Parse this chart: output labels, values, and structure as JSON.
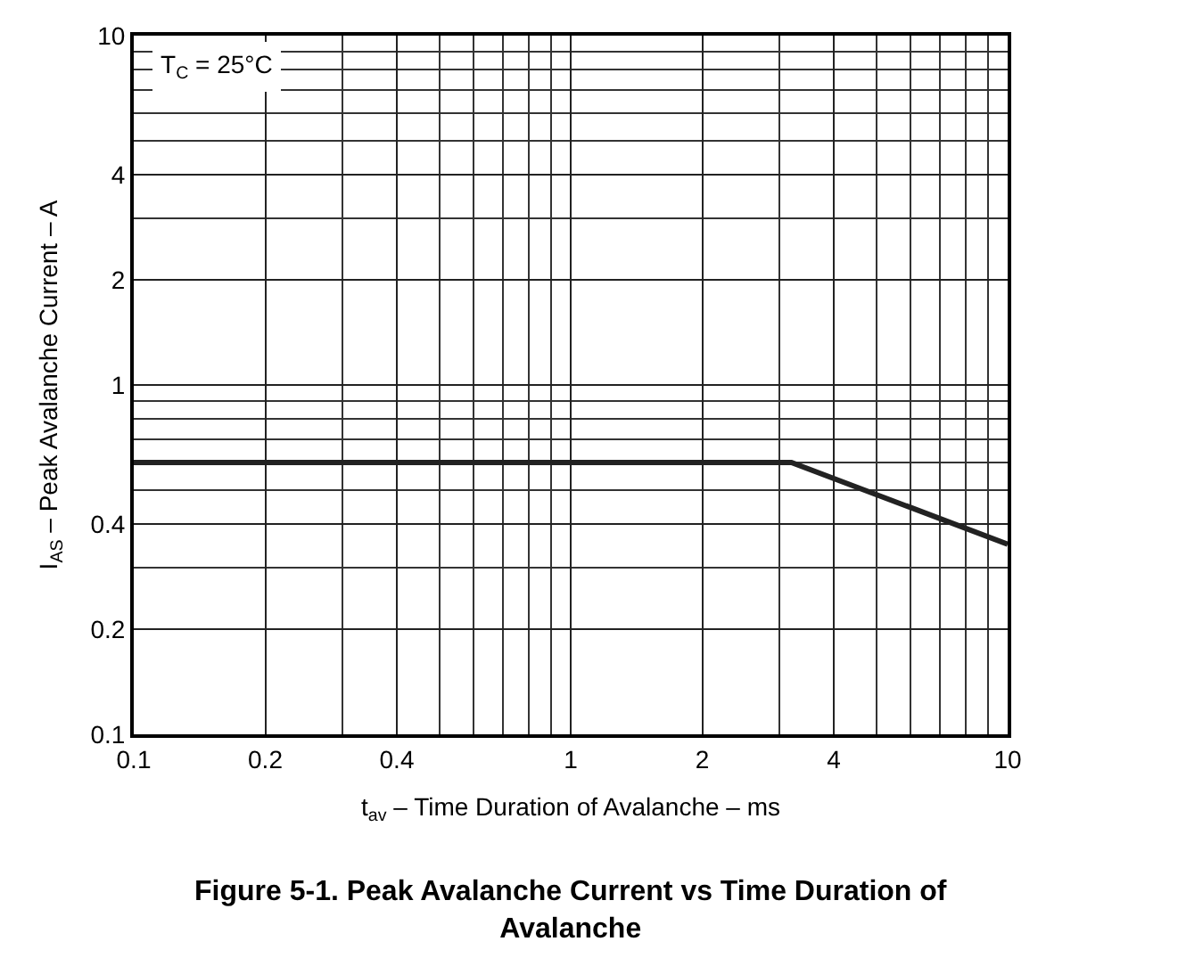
{
  "chart_data": {
    "type": "line",
    "title": "Figure 5-1. Peak Avalanche Current vs Time Duration of Avalanche",
    "xlabel": "t$_{av}$ – Time Duration of Avalanche – ms",
    "ylabel": "I$_{AS}$ – Peak Avalanche Current – A",
    "x": [
      0.1,
      3.2,
      10
    ],
    "series": [
      {
        "color": "#222222",
        "values": [
          0.6,
          0.6,
          0.35
        ]
      }
    ],
    "xlim": [
      0.1,
      10
    ],
    "ylim": [
      0.1,
      10
    ],
    "xticks": [
      0.1,
      0.2,
      0.4,
      1,
      2,
      4,
      10
    ],
    "yticks": [
      0.1,
      0.2,
      0.4,
      1,
      2,
      4,
      10
    ],
    "log": "xy",
    "grid": true,
    "line_style": "solid",
    "marker": "none",
    "annotations": [
      "T$_{C}$ = 25°C"
    ]
  }
}
